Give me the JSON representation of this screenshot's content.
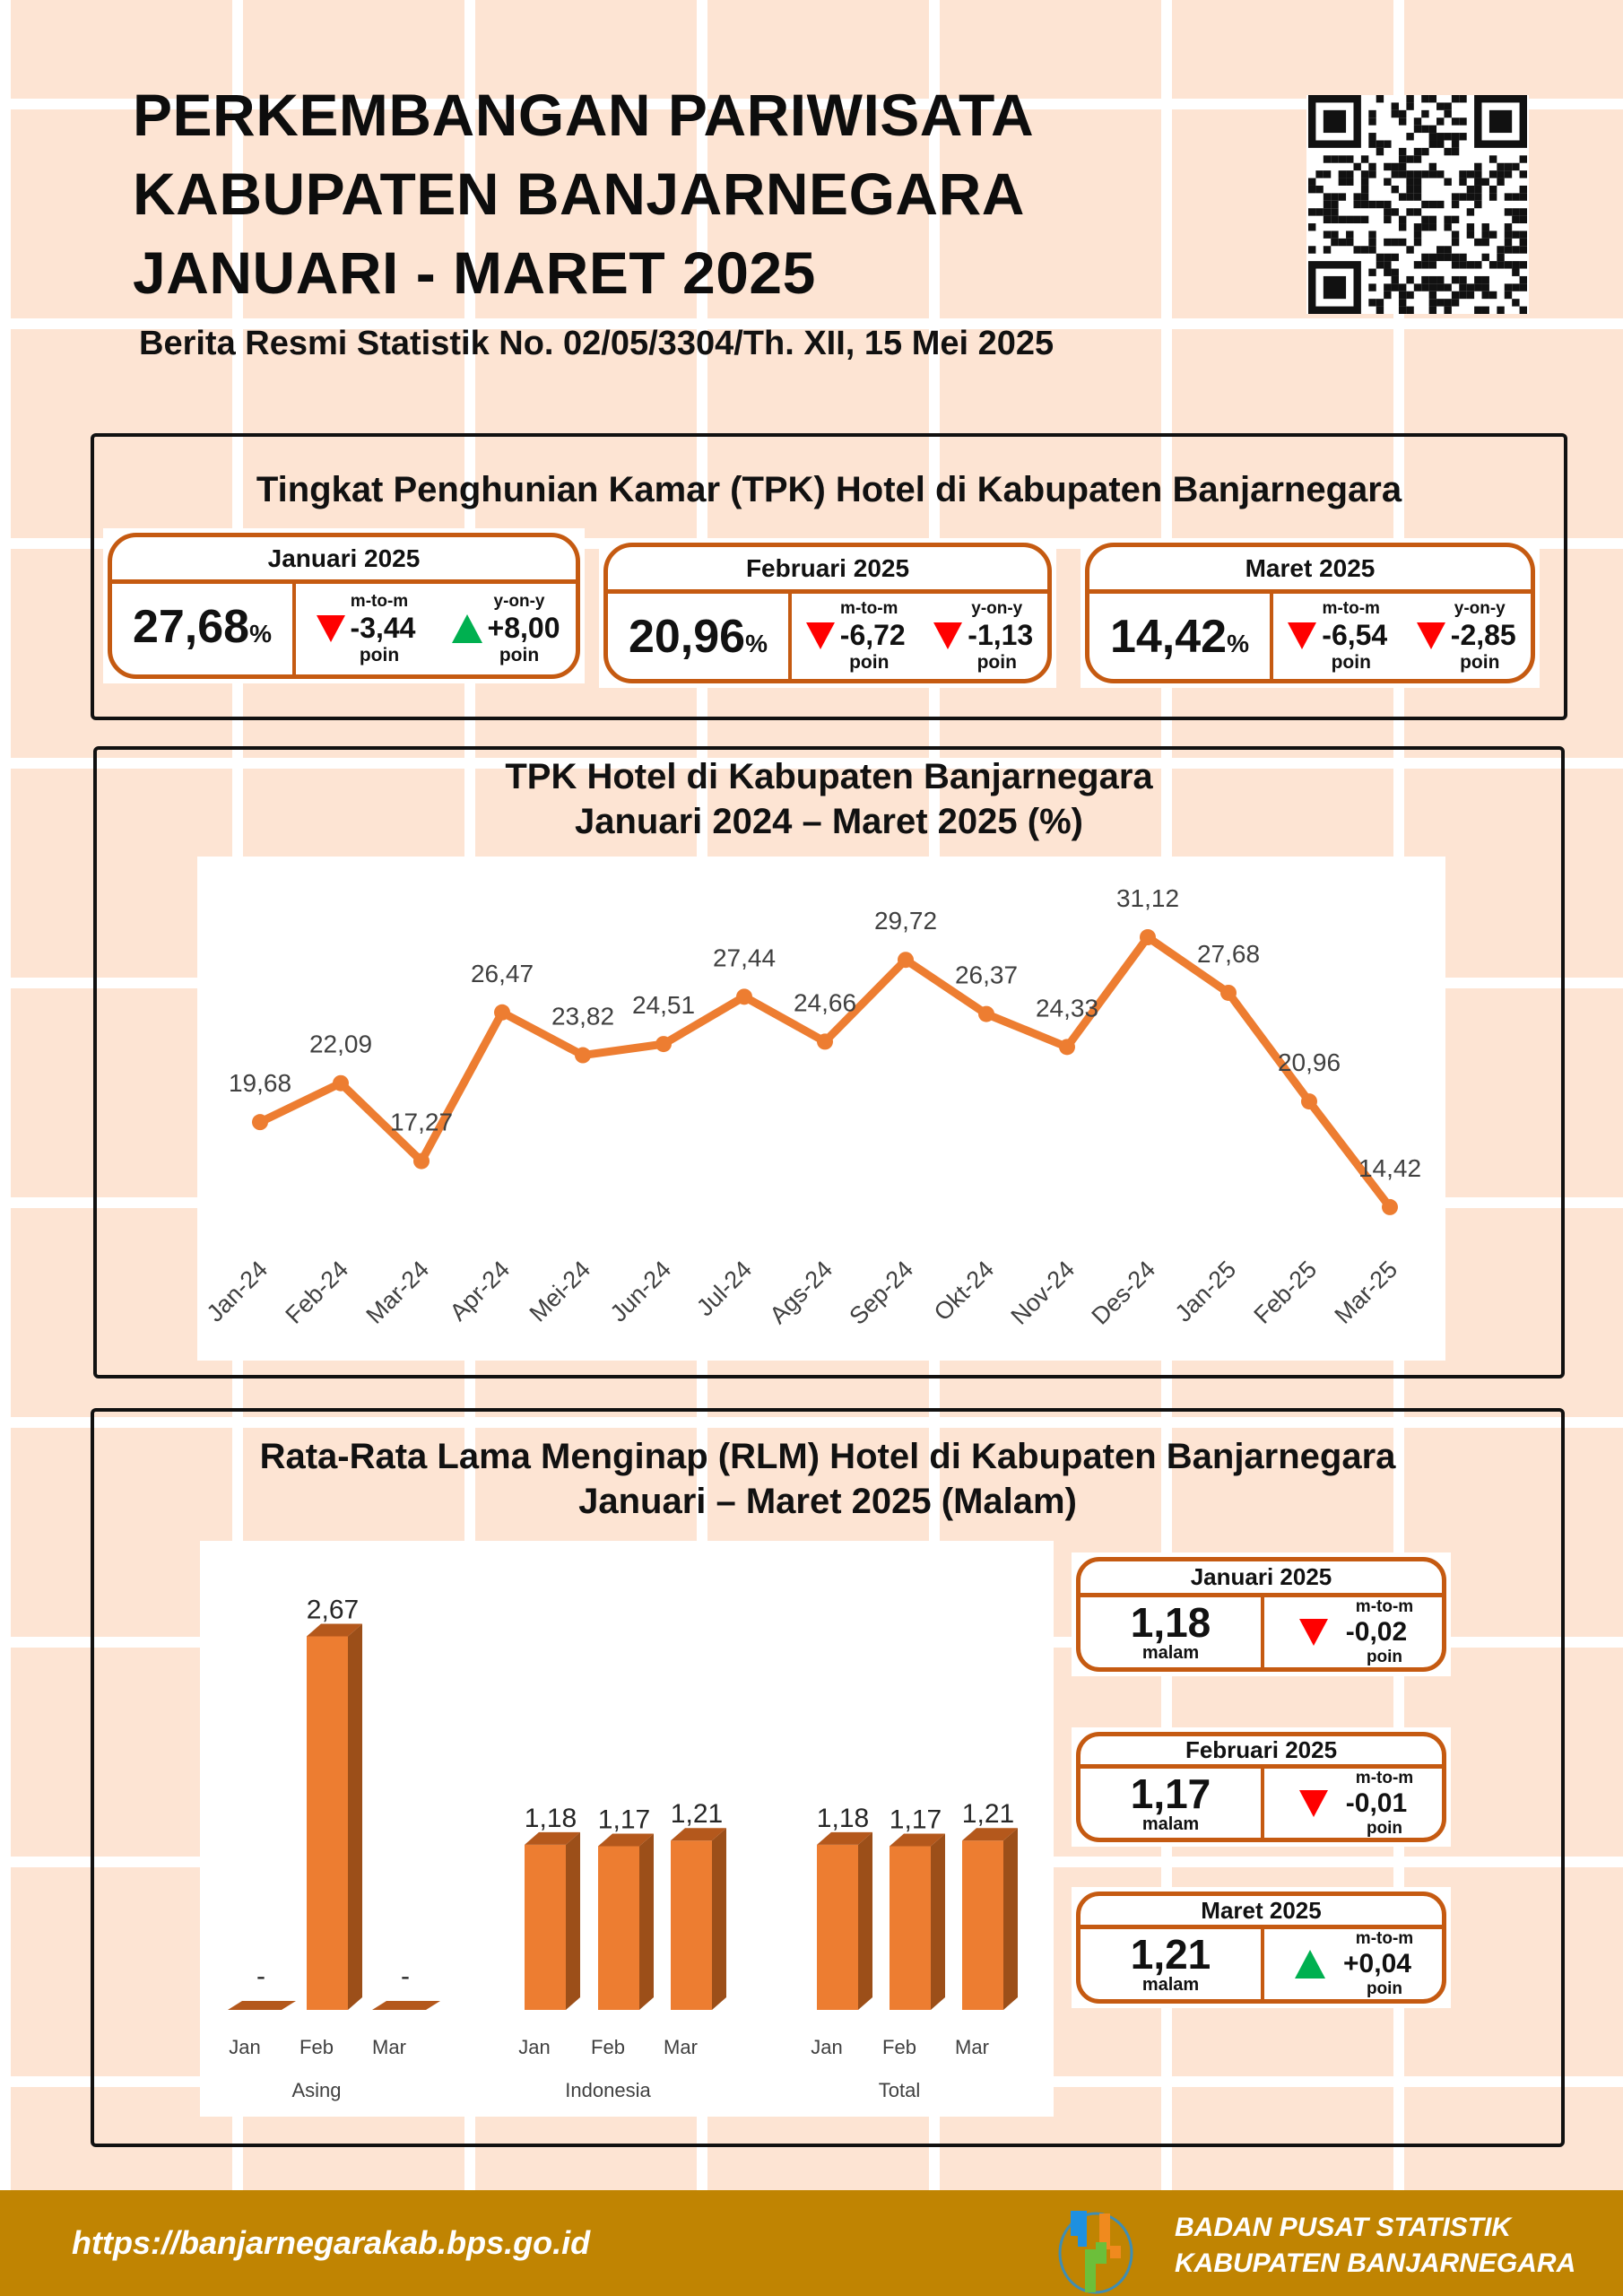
{
  "header": {
    "title_lines": [
      "PERKEMBANGAN PARIWISATA",
      "KABUPATEN BANJARNEGARA",
      "JANUARI - MARET 2025"
    ],
    "subtitle": "Berita Resmi Statistik No. 02/05/3304/Th. XII, 15 Mei 2025",
    "qr_icon": "qr-code"
  },
  "tpk_summary": {
    "title": "Tingkat Penghunian Kamar (TPK) Hotel di Kabupaten Banjarnegara",
    "cards": [
      {
        "month": "Januari 2025",
        "value": "27,68",
        "unit": "%",
        "mtm_label": "m-to-m",
        "mtm_value": "-3,44",
        "mtm_dir": "down",
        "yoy_label": "y-on-y",
        "yoy_value": "+8,00",
        "yoy_dir": "up",
        "poin": "poin"
      },
      {
        "month": "Februari 2025",
        "value": "20,96",
        "unit": "%",
        "mtm_label": "m-to-m",
        "mtm_value": "-6,72",
        "mtm_dir": "down",
        "yoy_label": "y-on-y",
        "yoy_value": "-1,13",
        "yoy_dir": "down",
        "poin": "poin"
      },
      {
        "month": "Maret 2025",
        "value": "14,42",
        "unit": "%",
        "mtm_label": "m-to-m",
        "mtm_value": "-6,54",
        "mtm_dir": "down",
        "yoy_label": "y-on-y",
        "yoy_value": "-2,85",
        "yoy_dir": "down",
        "poin": "poin"
      }
    ]
  },
  "rlm_summary": {
    "title_lines": [
      "Rata-Rata Lama Menginap (RLM) Hotel di Kabupaten Banjarnegara",
      "Januari – Maret 2025 (Malam)"
    ],
    "cards": [
      {
        "month": "Januari 2025",
        "value": "1,18",
        "unit": "malam",
        "mtm_label": "m-to-m",
        "mtm_value": "-0,02",
        "mtm_dir": "down",
        "poin": "poin"
      },
      {
        "month": "Februari 2025",
        "value": "1,17",
        "unit": "malam",
        "mtm_label": "m-to-m",
        "mtm_value": "-0,01",
        "mtm_dir": "down",
        "poin": "poin"
      },
      {
        "month": "Maret 2025",
        "value": "1,21",
        "unit": "malam",
        "mtm_label": "m-to-m",
        "mtm_value": "+0,04",
        "mtm_dir": "up",
        "poin": "poin"
      }
    ]
  },
  "chart_data": [
    {
      "type": "line",
      "title_lines": [
        "TPK Hotel di Kabupaten Banjarnegara",
        "Januari 2024 – Maret 2025 (%)"
      ],
      "categories": [
        "Jan-24",
        "Feb-24",
        "Mar-24",
        "Apr-24",
        "Mei-24",
        "Jun-24",
        "Jul-24",
        "Ags-24",
        "Sep-24",
        "Okt-24",
        "Nov-24",
        "Des-24",
        "Jan-25",
        "Feb-25",
        "Mar-25"
      ],
      "values": [
        19.68,
        22.09,
        17.27,
        26.47,
        23.82,
        24.51,
        27.44,
        24.66,
        29.72,
        26.37,
        24.33,
        31.12,
        27.68,
        20.96,
        14.42
      ],
      "labels": [
        "19,68",
        "22,09",
        "17,27",
        "26,47",
        "23,82",
        "24,51",
        "27,44",
        "24,66",
        "29,72",
        "26,37",
        "24,33",
        "31,12",
        "27,68",
        "20,96",
        "14,42"
      ],
      "color": "#ed7d31",
      "grid": false,
      "ylabel": "",
      "xlabel": ""
    },
    {
      "type": "bar",
      "groups": [
        "Asing",
        "Indonesia",
        "Total"
      ],
      "categories": [
        "Jan",
        "Feb",
        "Mar"
      ],
      "series": [
        {
          "name": "Asing",
          "values": [
            0,
            2.67,
            0
          ],
          "labels": [
            "-",
            "2,67",
            "-"
          ]
        },
        {
          "name": "Indonesia",
          "values": [
            1.18,
            1.17,
            1.21
          ],
          "labels": [
            "1,18",
            "1,17",
            "1,21"
          ]
        },
        {
          "name": "Total",
          "values": [
            1.18,
            1.17,
            1.21
          ],
          "labels": [
            "1,18",
            "1,17",
            "1,21"
          ]
        }
      ],
      "color": "#ed7d31",
      "side_color": "#9c4f19",
      "grid": false
    }
  ],
  "footer": {
    "url": "https://banjarnegarakab.bps.go.id",
    "org_lines": [
      "BADAN PUSAT STATISTIK",
      "KABUPATEN BANJARNEGARA"
    ],
    "logo_colors": [
      "#1e90e0",
      "#f08a1e",
      "#6cbf3a"
    ]
  },
  "colors": {
    "accent": "#c55a11",
    "down": "#ff0000",
    "up": "#00b050",
    "footer": "#c08402"
  }
}
